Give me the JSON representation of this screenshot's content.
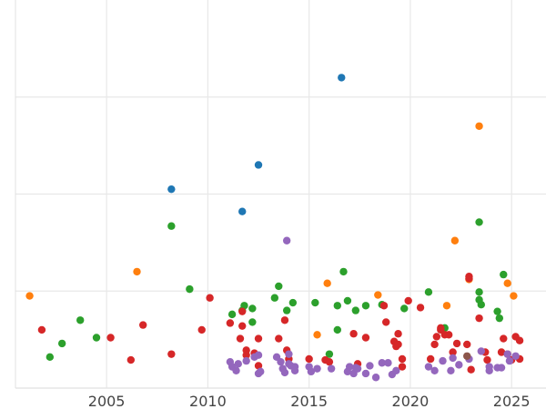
{
  "chart_data": {
    "type": "scatter",
    "title": "",
    "xlabel": "",
    "ylabel": "",
    "xlim": [
      2000.5,
      2026.7
    ],
    "ylim": [
      0,
      4
    ],
    "x_ticks": [
      2005,
      2010,
      2015,
      2020,
      2025
    ],
    "x_tick_labels": [
      "2005",
      "2010",
      "2015",
      "2020",
      "2025"
    ],
    "y_ticks": [
      0,
      1,
      2,
      3,
      4
    ],
    "grid": true,
    "legend": "none",
    "series": [
      {
        "color": "#1f77b4",
        "points": [
          [
            2008.2,
            2.05
          ],
          [
            2011.7,
            1.82
          ],
          [
            2012.5,
            2.3
          ],
          [
            2016.6,
            3.2
          ]
        ]
      },
      {
        "color": "#ff7f0e",
        "points": [
          [
            2001.2,
            0.95
          ],
          [
            2006.5,
            1.2
          ],
          [
            2015.4,
            0.55
          ],
          [
            2015.9,
            1.08
          ],
          [
            2018.4,
            0.96
          ],
          [
            2021.8,
            0.85
          ],
          [
            2022.2,
            1.52
          ],
          [
            2022.9,
            1.12
          ],
          [
            2023.4,
            2.7
          ],
          [
            2024.8,
            1.08
          ],
          [
            2025.1,
            0.95
          ]
        ]
      },
      {
        "color": "#2ca02c",
        "points": [
          [
            2002.2,
            0.32
          ],
          [
            2002.8,
            0.46
          ],
          [
            2003.7,
            0.7
          ],
          [
            2004.5,
            0.52
          ],
          [
            2008.2,
            1.67
          ],
          [
            2009.1,
            1.02
          ],
          [
            2011.2,
            0.76
          ],
          [
            2011.7,
            0.8
          ],
          [
            2011.8,
            0.85
          ],
          [
            2012.2,
            0.68
          ],
          [
            2012.2,
            0.82
          ],
          [
            2013.3,
            0.93
          ],
          [
            2013.5,
            1.05
          ],
          [
            2013.9,
            0.8
          ],
          [
            2014.2,
            0.88
          ],
          [
            2015.3,
            0.88
          ],
          [
            2016.0,
            0.35
          ],
          [
            2016.4,
            0.6
          ],
          [
            2016.4,
            0.85
          ],
          [
            2016.7,
            1.2
          ],
          [
            2016.9,
            0.9
          ],
          [
            2017.3,
            0.8
          ],
          [
            2017.8,
            0.85
          ],
          [
            2018.6,
            0.86
          ],
          [
            2019.7,
            0.82
          ],
          [
            2020.9,
            0.99
          ],
          [
            2021.7,
            0.62
          ],
          [
            2023.4,
            1.71
          ],
          [
            2023.4,
            0.99
          ],
          [
            2023.4,
            0.91
          ],
          [
            2023.5,
            0.86
          ],
          [
            2024.3,
            0.79
          ],
          [
            2024.4,
            0.72
          ],
          [
            2024.6,
            1.17
          ]
        ]
      },
      {
        "color": "#d62728",
        "points": [
          [
            2001.8,
            0.6
          ],
          [
            2005.2,
            0.52
          ],
          [
            2006.2,
            0.29
          ],
          [
            2006.8,
            0.65
          ],
          [
            2008.2,
            0.35
          ],
          [
            2009.7,
            0.6
          ],
          [
            2010.1,
            0.93
          ],
          [
            2011.1,
            0.67
          ],
          [
            2011.6,
            0.51
          ],
          [
            2011.7,
            0.79
          ],
          [
            2011.7,
            0.64
          ],
          [
            2011.9,
            0.39
          ],
          [
            2011.9,
            0.34
          ],
          [
            2012.3,
            0.36
          ],
          [
            2012.5,
            0.51
          ],
          [
            2012.5,
            0.23
          ],
          [
            2013.5,
            0.51
          ],
          [
            2013.8,
            0.7
          ],
          [
            2013.9,
            0.39
          ],
          [
            2014.0,
            0.3
          ],
          [
            2015.0,
            0.3
          ],
          [
            2015.8,
            0.29
          ],
          [
            2016.0,
            0.27
          ],
          [
            2017.2,
            0.56
          ],
          [
            2017.4,
            0.25
          ],
          [
            2017.8,
            0.52
          ],
          [
            2018.7,
            0.85
          ],
          [
            2018.8,
            0.68
          ],
          [
            2019.2,
            0.48
          ],
          [
            2019.3,
            0.43
          ],
          [
            2019.4,
            0.56
          ],
          [
            2019.4,
            0.45
          ],
          [
            2019.6,
            0.3
          ],
          [
            2019.6,
            0.22
          ],
          [
            2019.9,
            0.9
          ],
          [
            2020.5,
            0.83
          ],
          [
            2021.0,
            0.3
          ],
          [
            2021.2,
            0.45
          ],
          [
            2021.3,
            0.53
          ],
          [
            2021.5,
            0.6
          ],
          [
            2021.5,
            0.62
          ],
          [
            2021.7,
            0.55
          ],
          [
            2021.9,
            0.55
          ],
          [
            2022.1,
            0.37
          ],
          [
            2022.3,
            0.46
          ],
          [
            2022.8,
            0.45
          ],
          [
            2022.9,
            1.15
          ],
          [
            2022.9,
            1.13
          ],
          [
            2023.0,
            0.19
          ],
          [
            2023.4,
            0.72
          ],
          [
            2023.7,
            0.37
          ],
          [
            2023.8,
            0.29
          ],
          [
            2024.5,
            0.37
          ],
          [
            2024.6,
            0.51
          ],
          [
            2024.8,
            0.35
          ],
          [
            2025.0,
            0.29
          ],
          [
            2025.2,
            0.53
          ],
          [
            2025.4,
            0.3
          ],
          [
            2025.4,
            0.49
          ]
        ]
      },
      {
        "color": "#9467bd",
        "points": [
          [
            2011.1,
            0.27
          ],
          [
            2011.2,
            0.22
          ],
          [
            2011.4,
            0.18
          ],
          [
            2011.5,
            0.25
          ],
          [
            2011.9,
            0.28
          ],
          [
            2012.3,
            0.32
          ],
          [
            2012.5,
            0.15
          ],
          [
            2012.5,
            0.34
          ],
          [
            2012.6,
            0.17
          ],
          [
            2013.4,
            0.32
          ],
          [
            2013.6,
            0.27
          ],
          [
            2013.7,
            0.2
          ],
          [
            2013.8,
            0.16
          ],
          [
            2013.9,
            1.52
          ],
          [
            2014.0,
            0.35
          ],
          [
            2014.0,
            0.25
          ],
          [
            2014.1,
            0.23
          ],
          [
            2014.3,
            0.18
          ],
          [
            2014.3,
            0.22
          ],
          [
            2015.0,
            0.22
          ],
          [
            2015.1,
            0.17
          ],
          [
            2015.4,
            0.2
          ],
          [
            2016.1,
            0.2
          ],
          [
            2016.9,
            0.17
          ],
          [
            2017.0,
            0.22
          ],
          [
            2017.2,
            0.15
          ],
          [
            2017.3,
            0.21
          ],
          [
            2017.4,
            0.2
          ],
          [
            2017.8,
            0.15
          ],
          [
            2018.0,
            0.23
          ],
          [
            2018.3,
            0.11
          ],
          [
            2018.6,
            0.26
          ],
          [
            2018.9,
            0.26
          ],
          [
            2019.1,
            0.14
          ],
          [
            2019.3,
            0.18
          ],
          [
            2020.9,
            0.22
          ],
          [
            2021.2,
            0.18
          ],
          [
            2021.6,
            0.28
          ],
          [
            2022.0,
            0.18
          ],
          [
            2022.1,
            0.31
          ],
          [
            2022.4,
            0.24
          ],
          [
            2022.9,
            0.3
          ],
          [
            2023.5,
            0.38
          ],
          [
            2023.9,
            0.22
          ],
          [
            2023.9,
            0.18
          ],
          [
            2024.3,
            0.21
          ],
          [
            2024.5,
            0.21
          ],
          [
            2024.8,
            0.35
          ],
          [
            2024.9,
            0.28
          ],
          [
            2025.2,
            0.33
          ]
        ]
      },
      {
        "color": "#8c564b",
        "points": [
          [
            2022.8,
            0.33
          ]
        ]
      }
    ]
  }
}
